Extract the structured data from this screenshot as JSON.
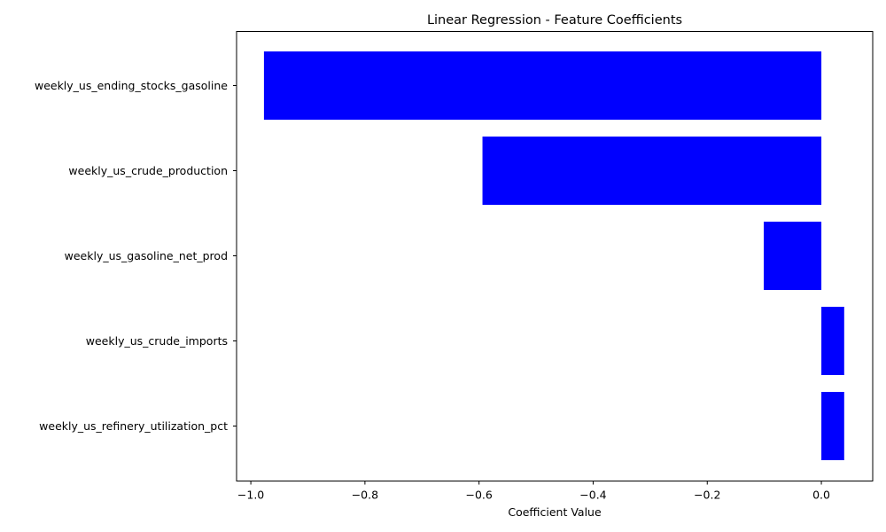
{
  "chart_data": {
    "type": "bar",
    "orientation": "horizontal",
    "title": "Linear Regression - Feature Coefficients",
    "xlabel": "Coefficient Value",
    "ylabel": "",
    "categories": [
      "weekly_us_ending_stocks_gasoline",
      "weekly_us_crude_production",
      "weekly_us_gasoline_net_prod",
      "weekly_us_crude_imports",
      "weekly_us_refinery_utilization_pct"
    ],
    "values": [
      -0.977,
      -0.594,
      -0.101,
      0.04,
      0.04
    ],
    "xlim": [
      -1.025,
      0.09
    ],
    "xticks": [
      -1.0,
      -0.8,
      -0.6,
      -0.4,
      -0.2,
      0.0
    ],
    "xtick_labels": [
      "−1.0",
      "−0.8",
      "−0.6",
      "−0.4",
      "−0.2",
      "0.0"
    ],
    "bar_color": "#0000ff",
    "grid": false,
    "legend": "none"
  }
}
